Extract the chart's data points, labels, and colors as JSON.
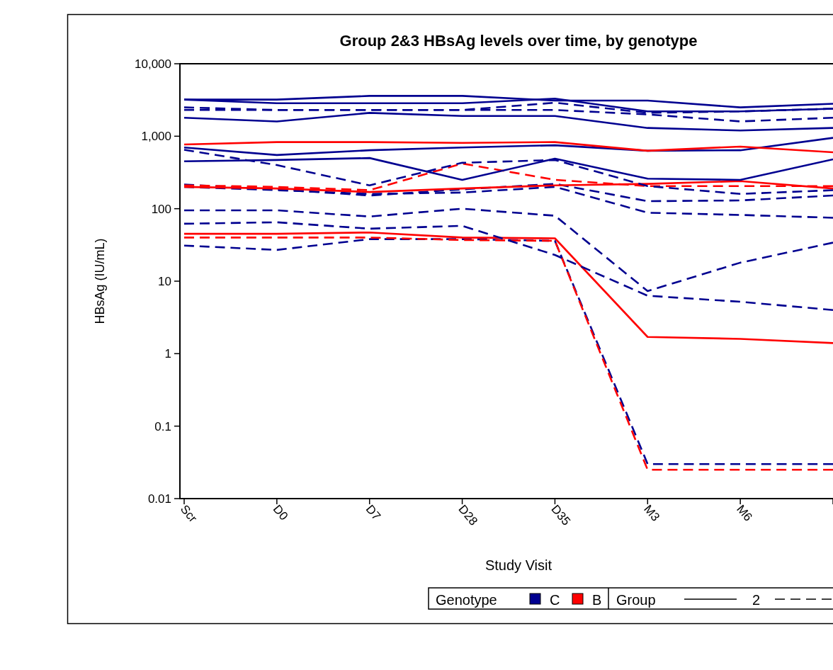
{
  "chart_data": {
    "type": "line",
    "title": "Group 2&3 HBsAg levels over time, by genotype",
    "xlabel": "Study Visit",
    "ylabel": "HBsAg (IU/mL)",
    "log": "y",
    "legend": "bottom",
    "legend_title": "Genotype",
    "annotations": [
      "Group",
      "2"
    ],
    "categories": [
      "Scr",
      "D0",
      "D7",
      "D28",
      "D35",
      "M3",
      "M6",
      null
    ],
    "ylim": [
      0.01,
      10000
    ],
    "yticks": [
      0.01,
      0.1,
      1,
      10,
      100,
      {
        "value": 1000,
        "label": "1,000"
      },
      {
        "value": 10000,
        "label": "10,000"
      }
    ],
    "series": [
      {
        "name": "C",
        "color": "#000090",
        "line_style": "solid",
        "values": [
          3200,
          3200,
          3600,
          3600,
          3100,
          3100,
          2500,
          2800
        ]
      },
      {
        "color": "#000090",
        "line_style": "solid",
        "values": [
          3200,
          2850,
          2850,
          2850,
          3300,
          2200,
          2200,
          2400
        ]
      },
      {
        "color": "#000090",
        "line_style": "dashed",
        "values": [
          2500,
          2300,
          2300,
          2300,
          2900,
          2100,
          2200,
          2400
        ]
      },
      {
        "color": "#000090",
        "line_style": "dashed",
        "values": [
          2300,
          2300,
          2300,
          2300,
          2300,
          2000,
          1600,
          1800
        ]
      },
      {
        "color": "#000090",
        "line_style": "solid",
        "values": [
          1800,
          1600,
          2100,
          1900,
          1900,
          1300,
          1200,
          1300
        ]
      },
      {
        "name": "B",
        "color": "#ff0000",
        "line_style": "solid",
        "values": [
          770,
          830,
          830,
          810,
          830,
          630,
          720,
          600
        ]
      },
      {
        "color": "#000090",
        "line_style": "solid",
        "values": [
          700,
          550,
          640,
          700,
          750,
          630,
          640,
          950
        ]
      },
      {
        "color": "#000090",
        "line_style": "solid",
        "values": [
          450,
          470,
          500,
          250,
          490,
          260,
          250,
          480
        ]
      },
      {
        "color": "#000090",
        "line_style": "dashed",
        "values": [
          650,
          400,
          210,
          430,
          470,
          205,
          160,
          180
        ]
      },
      {
        "color": "#ff0000",
        "line_style": "dashed",
        "values": [
          210,
          200,
          180,
          420,
          250,
          205,
          205,
          205
        ]
      },
      {
        "color": "#ff0000",
        "line_style": "solid",
        "values": [
          200,
          190,
          170,
          190,
          210,
          220,
          240,
          190
        ]
      },
      {
        "color": "#000090",
        "line_style": "dashed",
        "values": [
          215,
          185,
          152,
          185,
          220,
          127,
          130,
          152
        ]
      },
      {
        "color": "#000090",
        "line_style": "dashed",
        "values": [
          200,
          180,
          160,
          167,
          200,
          88,
          82,
          75
        ]
      },
      {
        "color": "#000090",
        "line_style": "dashed",
        "values": [
          95,
          95,
          78,
          100,
          80,
          7.3,
          18,
          34
        ]
      },
      {
        "color": "#000090",
        "line_style": "dashed",
        "values": [
          62,
          65,
          53,
          58,
          23,
          6.3,
          5.2,
          4
        ]
      },
      {
        "color": "#ff0000",
        "line_style": "solid",
        "values": [
          45,
          45,
          47,
          40,
          39,
          1.7,
          1.6,
          1.4
        ]
      },
      {
        "color": "#ff0000",
        "line_style": "dashed",
        "values": [
          40,
          40,
          40,
          37,
          36,
          0.025,
          0.025,
          0.025
        ]
      },
      {
        "color": "#000090",
        "line_style": "dashed",
        "values": [
          31,
          27,
          38,
          38,
          36,
          0.03,
          0.03,
          0.03
        ]
      }
    ]
  }
}
